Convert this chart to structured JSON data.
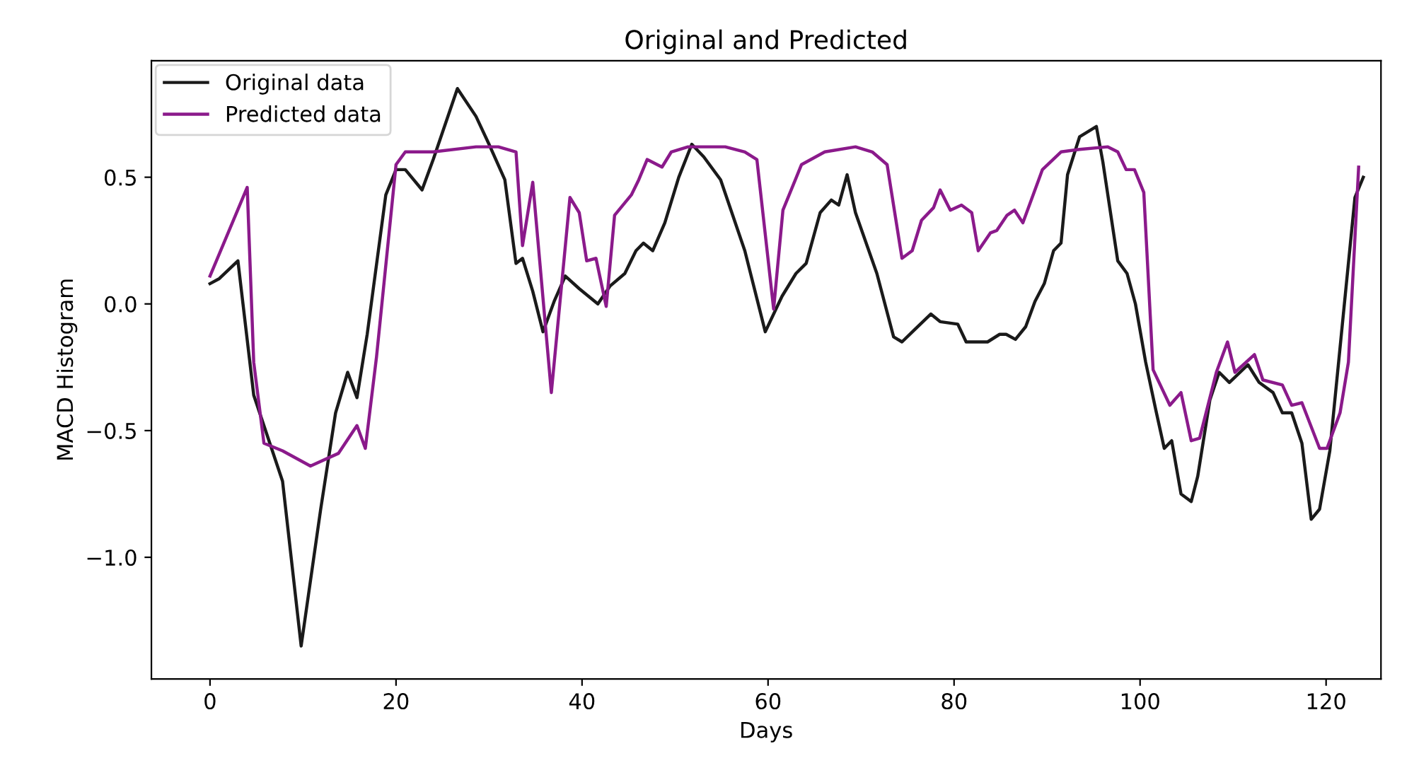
{
  "chart_data": {
    "type": "line",
    "title": "Original and Predicted",
    "xlabel": "Days",
    "ylabel": "MACD Histogram",
    "xlim": [
      -6.3,
      125.9
    ],
    "xticks": [
      0,
      20,
      40,
      60,
      80,
      100,
      120
    ],
    "ylim": [
      -1.48,
      0.96
    ],
    "yticks": [
      {
        "value": -1.0,
        "label": "−1.0"
      },
      {
        "value": -0.5,
        "label": "−0.5"
      },
      {
        "value": 0.0,
        "label": "0.0"
      },
      {
        "value": 0.5,
        "label": "0.5"
      }
    ],
    "grid": false,
    "legend": "top left",
    "marker": "none",
    "line_style": "solid",
    "series": [
      {
        "name": "Original data",
        "color": "#1a1a1a",
        "x": [
          0,
          1,
          3,
          4.7,
          7.8,
          9.8,
          11.9,
          13.5,
          14.8,
          15.8,
          16.9,
          18.9,
          20,
          21,
          22.8,
          24,
          26.6,
          28.6,
          30,
          31.7,
          32.9,
          33.6,
          34.7,
          35.8,
          37,
          38.2,
          39.7,
          41.7,
          43,
          44.6,
          45.8,
          46.6,
          47.6,
          48.9,
          50.4,
          51.8,
          53.1,
          54.9,
          57.5,
          59.7,
          61.5,
          63,
          64.1,
          65.6,
          66.8,
          67.6,
          68.5,
          69.4,
          71.7,
          73.5,
          74.4,
          75.8,
          77.5,
          78.5,
          80.4,
          81.3,
          83.6,
          84.9,
          85.6,
          86.6,
          87.7,
          88.7,
          89.7,
          90.7,
          91.5,
          92.2,
          93.5,
          95.3,
          96,
          97.6,
          98.6,
          99.5,
          100.6,
          101.7,
          102.6,
          103.4,
          104.4,
          105.5,
          106.2,
          107.5,
          108.5,
          109.6,
          111.6,
          112.8,
          114.3,
          115.3,
          116.3,
          117.4,
          118.4,
          119.3,
          120.4,
          123.1,
          124
        ],
        "values": [
          0.08,
          0.1,
          0.17,
          -0.36,
          -0.7,
          -1.35,
          -0.81,
          -0.43,
          -0.27,
          -0.37,
          -0.12,
          0.43,
          0.53,
          0.53,
          0.45,
          0.57,
          0.85,
          0.74,
          0.63,
          0.49,
          0.16,
          0.18,
          0.05,
          -0.11,
          0.01,
          0.11,
          0.06,
          0.0,
          0.07,
          0.12,
          0.21,
          0.24,
          0.21,
          0.32,
          0.5,
          0.63,
          0.58,
          0.49,
          0.21,
          -0.11,
          0.03,
          0.12,
          0.16,
          0.36,
          0.41,
          0.39,
          0.51,
          0.36,
          0.12,
          -0.13,
          -0.15,
          -0.1,
          -0.04,
          -0.07,
          -0.08,
          -0.15,
          -0.15,
          -0.12,
          -0.12,
          -0.14,
          -0.09,
          0.01,
          0.08,
          0.21,
          0.24,
          0.51,
          0.66,
          0.7,
          0.56,
          0.17,
          0.12,
          0.0,
          -0.23,
          -0.42,
          -0.57,
          -0.54,
          -0.75,
          -0.78,
          -0.68,
          -0.38,
          -0.27,
          -0.31,
          -0.24,
          -0.31,
          -0.35,
          -0.43,
          -0.43,
          -0.55,
          -0.85,
          -0.81,
          -0.58,
          0.42,
          0.5
        ]
      },
      {
        "name": "Predicted data",
        "color": "#8b1a8b",
        "x": [
          0,
          4,
          4.7,
          5.8,
          7.8,
          10.8,
          13.8,
          15.8,
          16.7,
          17.9,
          20,
          21,
          24,
          28.6,
          31,
          32.9,
          33.6,
          34.7,
          36.7,
          38.7,
          39.7,
          40.5,
          41.5,
          42.6,
          43.5,
          45.3,
          46.1,
          47,
          48.6,
          49.6,
          51.4,
          55.4,
          57.5,
          58.8,
          60.6,
          61.6,
          63.6,
          66.1,
          69.4,
          71.2,
          72.8,
          74.4,
          75.5,
          76.5,
          77.8,
          78.5,
          79.6,
          80.8,
          81.9,
          82.6,
          83.9,
          84.6,
          85.7,
          86.5,
          87.4,
          88.4,
          89.5,
          91.5,
          93.5,
          96.5,
          97.6,
          98.5,
          99.4,
          100.4,
          101.4,
          103.2,
          104.4,
          105.5,
          106.4,
          108.2,
          109.4,
          110.2,
          112.3,
          113.2,
          115.3,
          116.3,
          117.4,
          119.3,
          120.1,
          121.5,
          122.4,
          123.5
        ],
        "values": [
          0.11,
          0.46,
          -0.23,
          -0.55,
          -0.58,
          -0.64,
          -0.59,
          -0.48,
          -0.57,
          -0.21,
          0.55,
          0.6,
          0.6,
          0.62,
          0.62,
          0.6,
          0.23,
          0.48,
          -0.35,
          0.42,
          0.36,
          0.17,
          0.18,
          -0.01,
          0.35,
          0.43,
          0.49,
          0.57,
          0.54,
          0.6,
          0.62,
          0.62,
          0.6,
          0.57,
          -0.02,
          0.37,
          0.55,
          0.6,
          0.62,
          0.6,
          0.55,
          0.18,
          0.21,
          0.33,
          0.38,
          0.45,
          0.37,
          0.39,
          0.36,
          0.21,
          0.28,
          0.29,
          0.35,
          0.37,
          0.32,
          0.42,
          0.53,
          0.6,
          0.61,
          0.62,
          0.6,
          0.53,
          0.53,
          0.44,
          -0.26,
          -0.4,
          -0.35,
          -0.54,
          -0.53,
          -0.27,
          -0.15,
          -0.27,
          -0.2,
          -0.3,
          -0.32,
          -0.4,
          -0.39,
          -0.57,
          -0.57,
          -0.43,
          -0.23,
          0.54
        ]
      }
    ]
  }
}
